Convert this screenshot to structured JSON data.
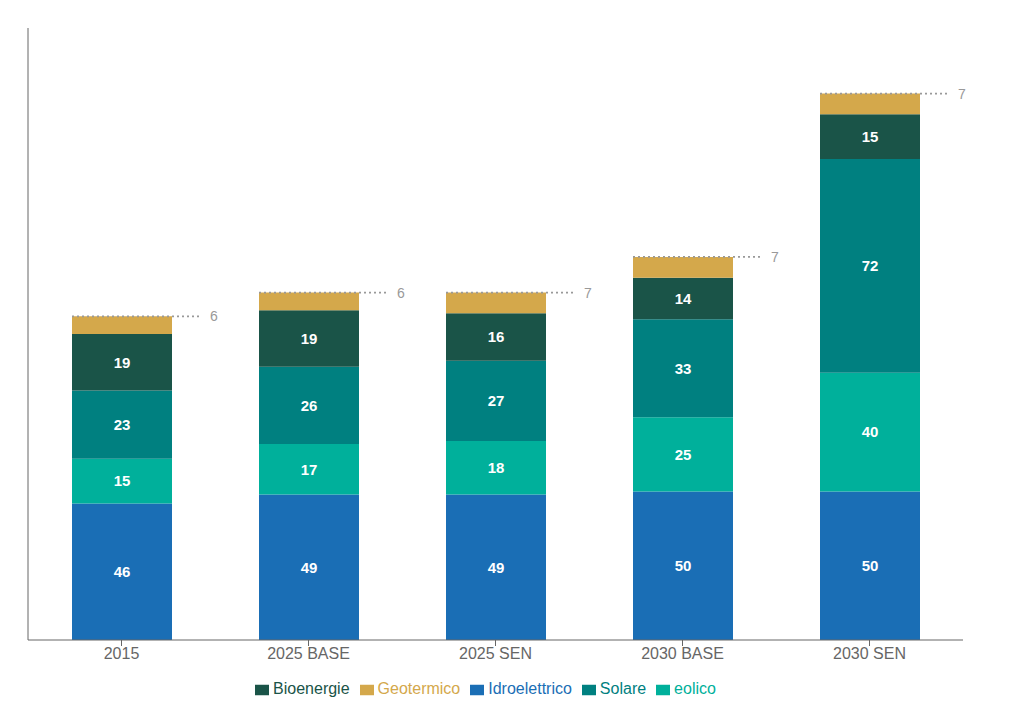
{
  "chart_data": {
    "type": "bar",
    "stacked": true,
    "categories": [
      "2015",
      "2025 BASE",
      "2025 SEN",
      "2030 BASE",
      "2030 SEN"
    ],
    "series": [
      {
        "name": "Idroelettrico",
        "color": "#1a6eb5",
        "values": [
          46,
          49,
          49,
          50,
          50
        ]
      },
      {
        "name": "eolico",
        "color": "#00b09b",
        "values": [
          15,
          17,
          18,
          25,
          40
        ]
      },
      {
        "name": "Solare",
        "color": "#008080",
        "values": [
          23,
          26,
          27,
          33,
          72
        ]
      },
      {
        "name": "Bioenergie",
        "color": "#1a5448",
        "values": [
          19,
          19,
          16,
          14,
          15
        ]
      },
      {
        "name": "Geotermico",
        "color": "#d4a84b",
        "values": [
          6,
          6,
          7,
          7,
          7
        ]
      }
    ],
    "ylim": [
      0,
      206.08
    ],
    "yticks": [],
    "grid": false,
    "legend": "bottom",
    "data_labels": true,
    "tick_labels": "x"
  }
}
